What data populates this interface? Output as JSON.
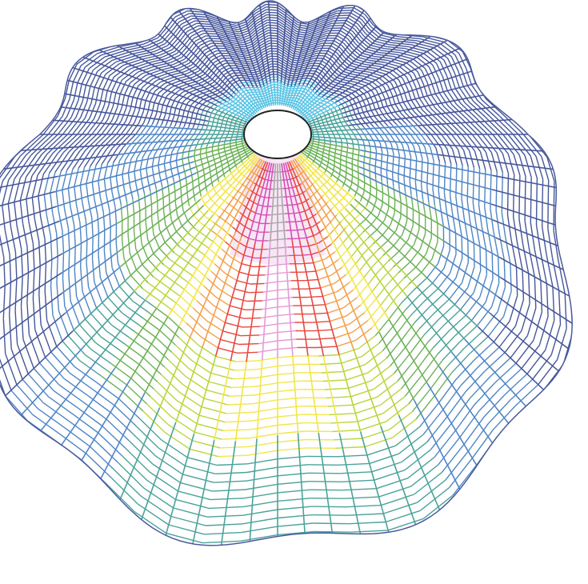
{
  "figure": {
    "kind": "radial contour mesh",
    "background_color": "#ffffff",
    "outer_mesh_color": "#4a5a9c",
    "opening_fill": "#ffffff",
    "opening_stroke": "#222222",
    "palette": {
      "navy": "#47579b",
      "blue": "#4f86c6",
      "cyan": "#58c3e3",
      "teal": "#4aa39a",
      "green": "#6cb257",
      "lime": "#b9d63c",
      "yellow": "#f2e64a",
      "orange": "#f4a04c",
      "red": "#e8473f",
      "magenta": "#d44fb5",
      "pink": "#e59ad7",
      "gray": "#a8a8a8"
    }
  }
}
